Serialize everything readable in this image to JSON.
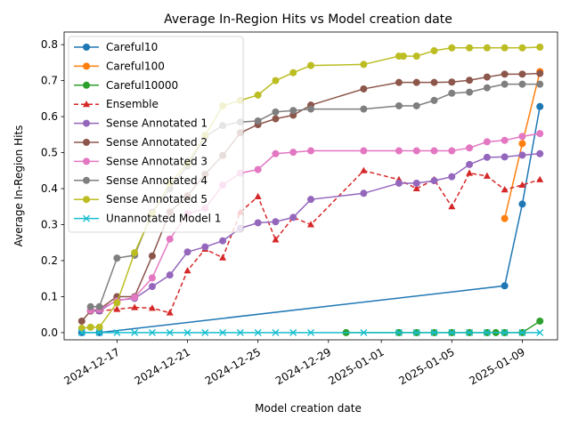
{
  "chart_data": {
    "type": "line",
    "title": "Average In-Region Hits vs Model creation date",
    "xlabel": "Model creation date",
    "ylabel": "Average In-Region Hits",
    "x_range": [
      "2024-12-14",
      "2025-01-11"
    ],
    "ylim": [
      -0.02,
      0.835
    ],
    "x_ticks": [
      "2024-12-17",
      "2024-12-21",
      "2024-12-25",
      "2024-12-29",
      "2025-01-01",
      "2025-01-05",
      "2025-01-09"
    ],
    "y_ticks": [
      0.0,
      0.1,
      0.2,
      0.3,
      0.4,
      0.5,
      0.6,
      0.7,
      0.8
    ],
    "y_tick_labels": [
      "0.0",
      "0.1",
      "0.2",
      "0.3",
      "0.4",
      "0.5",
      "0.6",
      "0.7",
      "0.8"
    ],
    "grid": false,
    "legend_position": "upper-left",
    "series": [
      {
        "name": "Careful10",
        "color": "#1f77b4",
        "marker": "circle",
        "dashed": false,
        "points": [
          [
            "2024-12-15",
            0.0
          ],
          [
            "2024-12-16",
            0.0
          ],
          [
            "2025-01-08",
            0.13
          ],
          [
            "2025-01-09",
            0.357
          ],
          [
            "2025-01-10",
            0.628
          ]
        ]
      },
      {
        "name": "Careful100",
        "color": "#ff7f0e",
        "marker": "circle",
        "dashed": false,
        "points": [
          [
            "2025-01-08",
            0.317
          ],
          [
            "2025-01-09",
            0.525
          ],
          [
            "2025-01-10",
            0.725
          ]
        ]
      },
      {
        "name": "Careful10000",
        "color": "#2ca02c",
        "marker": "circle",
        "dashed": false,
        "points": [
          [
            "2024-12-30",
            0.0
          ],
          [
            "2025-01-02",
            0.0
          ],
          [
            "2025-01-03",
            0.0
          ],
          [
            "2025-01-04",
            0.0
          ],
          [
            "2025-01-05",
            0.0
          ],
          [
            "2025-01-06",
            0.0
          ],
          [
            "2025-01-07",
            0.0
          ],
          [
            "2025-01-07 12:00",
            0.0
          ],
          [
            "2025-01-08",
            0.0
          ],
          [
            "2025-01-09",
            0.0
          ],
          [
            "2025-01-10",
            0.032
          ]
        ]
      },
      {
        "name": "Ensemble",
        "color": "#d62728",
        "marker": "triangle",
        "dashed": true,
        "points": [
          [
            "2024-12-16",
            0.06
          ],
          [
            "2024-12-17",
            0.065
          ],
          [
            "2024-12-18",
            0.07
          ],
          [
            "2024-12-19",
            0.068
          ],
          [
            "2024-12-20",
            0.055
          ],
          [
            "2024-12-21",
            0.172
          ],
          [
            "2024-12-22",
            0.232
          ],
          [
            "2024-12-23",
            0.208
          ],
          [
            "2024-12-24",
            0.335
          ],
          [
            "2024-12-25",
            0.378
          ],
          [
            "2024-12-26",
            0.258
          ],
          [
            "2024-12-27",
            0.32
          ],
          [
            "2024-12-28",
            0.3
          ],
          [
            "2024-12-31",
            0.45
          ],
          [
            "2025-01-02",
            0.425
          ],
          [
            "2025-01-03",
            0.4
          ],
          [
            "2025-01-04",
            0.425
          ],
          [
            "2025-01-05",
            0.35
          ],
          [
            "2025-01-06",
            0.443
          ],
          [
            "2025-01-07",
            0.435
          ],
          [
            "2025-01-08",
            0.397
          ],
          [
            "2025-01-09",
            0.41
          ],
          [
            "2025-01-10",
            0.425
          ]
        ]
      },
      {
        "name": "Sense Annotated 1",
        "color": "#9467bd",
        "marker": "circle",
        "dashed": false,
        "points": [
          [
            "2024-12-15 12:00",
            0.06
          ],
          [
            "2024-12-16",
            0.06
          ],
          [
            "2024-12-17",
            0.09
          ],
          [
            "2024-12-18",
            0.095
          ],
          [
            "2024-12-19",
            0.128
          ],
          [
            "2024-12-20",
            0.16
          ],
          [
            "2024-12-21",
            0.224
          ],
          [
            "2024-12-22",
            0.238
          ],
          [
            "2024-12-23",
            0.255
          ],
          [
            "2024-12-24",
            0.29
          ],
          [
            "2024-12-25",
            0.305
          ],
          [
            "2024-12-26",
            0.308
          ],
          [
            "2024-12-27",
            0.32
          ],
          [
            "2024-12-28",
            0.37
          ],
          [
            "2024-12-31",
            0.387
          ],
          [
            "2025-01-02",
            0.415
          ],
          [
            "2025-01-03",
            0.415
          ],
          [
            "2025-01-04",
            0.422
          ],
          [
            "2025-01-05",
            0.433
          ],
          [
            "2025-01-06",
            0.467
          ],
          [
            "2025-01-07",
            0.487
          ],
          [
            "2025-01-08",
            0.488
          ],
          [
            "2025-01-09",
            0.493
          ],
          [
            "2025-01-10",
            0.497
          ]
        ]
      },
      {
        "name": "Sense Annotated 2",
        "color": "#8c564b",
        "marker": "circle",
        "dashed": false,
        "points": [
          [
            "2024-12-15",
            0.032
          ],
          [
            "2024-12-15 12:00",
            0.06
          ],
          [
            "2024-12-16",
            0.065
          ],
          [
            "2024-12-17",
            0.1
          ],
          [
            "2024-12-18",
            0.1
          ],
          [
            "2024-12-19",
            0.213
          ],
          [
            "2024-12-20",
            0.335
          ],
          [
            "2024-12-21",
            0.38
          ],
          [
            "2024-12-22",
            0.44
          ],
          [
            "2024-12-23",
            0.492
          ],
          [
            "2024-12-24",
            0.555
          ],
          [
            "2024-12-25",
            0.578
          ],
          [
            "2024-12-26",
            0.594
          ],
          [
            "2024-12-27",
            0.604
          ],
          [
            "2024-12-28",
            0.632
          ],
          [
            "2024-12-31",
            0.677
          ],
          [
            "2025-01-02",
            0.695
          ],
          [
            "2025-01-03",
            0.695
          ],
          [
            "2025-01-04",
            0.695
          ],
          [
            "2025-01-05",
            0.696
          ],
          [
            "2025-01-06",
            0.701
          ],
          [
            "2025-01-07",
            0.71
          ],
          [
            "2025-01-08",
            0.718
          ],
          [
            "2025-01-09",
            0.718
          ],
          [
            "2025-01-10",
            0.72
          ]
        ]
      },
      {
        "name": "Sense Annotated 3",
        "color": "#e377c2",
        "marker": "circle",
        "dashed": false,
        "points": [
          [
            "2024-12-15 12:00",
            0.062
          ],
          [
            "2024-12-16",
            0.065
          ],
          [
            "2024-12-17",
            0.088
          ],
          [
            "2024-12-18",
            0.098
          ],
          [
            "2024-12-19",
            0.152
          ],
          [
            "2024-12-20",
            0.26
          ],
          [
            "2024-12-21",
            0.33
          ],
          [
            "2024-12-22",
            0.345
          ],
          [
            "2024-12-23",
            0.41
          ],
          [
            "2024-12-24",
            0.443
          ],
          [
            "2024-12-25",
            0.453
          ],
          [
            "2024-12-26",
            0.497
          ],
          [
            "2024-12-27",
            0.501
          ],
          [
            "2024-12-28",
            0.505
          ],
          [
            "2024-12-31",
            0.505
          ],
          [
            "2025-01-02",
            0.505
          ],
          [
            "2025-01-03",
            0.505
          ],
          [
            "2025-01-04",
            0.505
          ],
          [
            "2025-01-05",
            0.505
          ],
          [
            "2025-01-06",
            0.513
          ],
          [
            "2025-01-07",
            0.53
          ],
          [
            "2025-01-08",
            0.534
          ],
          [
            "2025-01-09",
            0.545
          ],
          [
            "2025-01-10",
            0.553
          ]
        ]
      },
      {
        "name": "Sense Annotated 4",
        "color": "#7f7f7f",
        "marker": "circle",
        "dashed": false,
        "points": [
          [
            "2024-12-15 12:00",
            0.072
          ],
          [
            "2024-12-16",
            0.072
          ],
          [
            "2024-12-17",
            0.207
          ],
          [
            "2024-12-18",
            0.215
          ],
          [
            "2024-12-19",
            0.335
          ],
          [
            "2024-12-20",
            0.4
          ],
          [
            "2024-12-21",
            0.463
          ],
          [
            "2024-12-22",
            0.545
          ],
          [
            "2024-12-23",
            0.575
          ],
          [
            "2024-12-24",
            0.585
          ],
          [
            "2024-12-25",
            0.588
          ],
          [
            "2024-12-26",
            0.613
          ],
          [
            "2024-12-27",
            0.617
          ],
          [
            "2024-12-28",
            0.621
          ],
          [
            "2024-12-31",
            0.621
          ],
          [
            "2025-01-02",
            0.63
          ],
          [
            "2025-01-03",
            0.63
          ],
          [
            "2025-01-04",
            0.645
          ],
          [
            "2025-01-05",
            0.665
          ],
          [
            "2025-01-06",
            0.668
          ],
          [
            "2025-01-07",
            0.68
          ],
          [
            "2025-01-08",
            0.69
          ],
          [
            "2025-01-09",
            0.69
          ],
          [
            "2025-01-10",
            0.69
          ]
        ]
      },
      {
        "name": "Sense Annotated 5",
        "color": "#bcbd22",
        "marker": "circle",
        "dashed": false,
        "points": [
          [
            "2024-12-15",
            0.012
          ],
          [
            "2024-12-15 12:00",
            0.015
          ],
          [
            "2024-12-16",
            0.015
          ],
          [
            "2024-12-17",
            0.083
          ],
          [
            "2024-12-18",
            0.222
          ],
          [
            "2024-12-19",
            0.33
          ],
          [
            "2024-12-20",
            0.415
          ],
          [
            "2024-12-21",
            0.47
          ],
          [
            "2024-12-22",
            0.548
          ],
          [
            "2024-12-23",
            0.63
          ],
          [
            "2024-12-24",
            0.645
          ],
          [
            "2024-12-25",
            0.66
          ],
          [
            "2024-12-26",
            0.7
          ],
          [
            "2024-12-27",
            0.722
          ],
          [
            "2024-12-28",
            0.742
          ],
          [
            "2024-12-31",
            0.745
          ],
          [
            "2025-01-02",
            0.768
          ],
          [
            "2025-01-02 06:00",
            0.768
          ],
          [
            "2025-01-03",
            0.768
          ],
          [
            "2025-01-04",
            0.783
          ],
          [
            "2025-01-05",
            0.791
          ],
          [
            "2025-01-06",
            0.791
          ],
          [
            "2025-01-07",
            0.791
          ],
          [
            "2025-01-08",
            0.791
          ],
          [
            "2025-01-09",
            0.791
          ],
          [
            "2025-01-10",
            0.793
          ]
        ]
      },
      {
        "name": "Unannotated Model 1",
        "color": "#17becf",
        "marker": "x",
        "dashed": false,
        "points": [
          [
            "2024-12-15",
            0.0
          ],
          [
            "2024-12-16",
            0.0
          ],
          [
            "2024-12-17",
            0.0
          ],
          [
            "2024-12-18",
            0.0
          ],
          [
            "2024-12-19",
            0.0
          ],
          [
            "2024-12-20",
            0.0
          ],
          [
            "2024-12-21",
            0.0
          ],
          [
            "2024-12-22",
            0.0
          ],
          [
            "2024-12-23",
            0.0
          ],
          [
            "2024-12-24",
            0.0
          ],
          [
            "2024-12-25",
            0.0
          ],
          [
            "2024-12-26",
            0.0
          ],
          [
            "2024-12-27",
            0.0
          ],
          [
            "2024-12-28",
            0.0
          ],
          [
            "2024-12-31",
            0.0
          ],
          [
            "2025-01-02",
            0.0
          ],
          [
            "2025-01-03",
            0.0
          ],
          [
            "2025-01-04",
            0.0
          ],
          [
            "2025-01-05",
            0.0
          ],
          [
            "2025-01-06",
            0.0
          ],
          [
            "2025-01-07",
            0.0
          ],
          [
            "2025-01-08",
            0.0
          ],
          [
            "2025-01-09",
            0.0
          ],
          [
            "2025-01-10",
            0.0
          ]
        ]
      }
    ]
  }
}
